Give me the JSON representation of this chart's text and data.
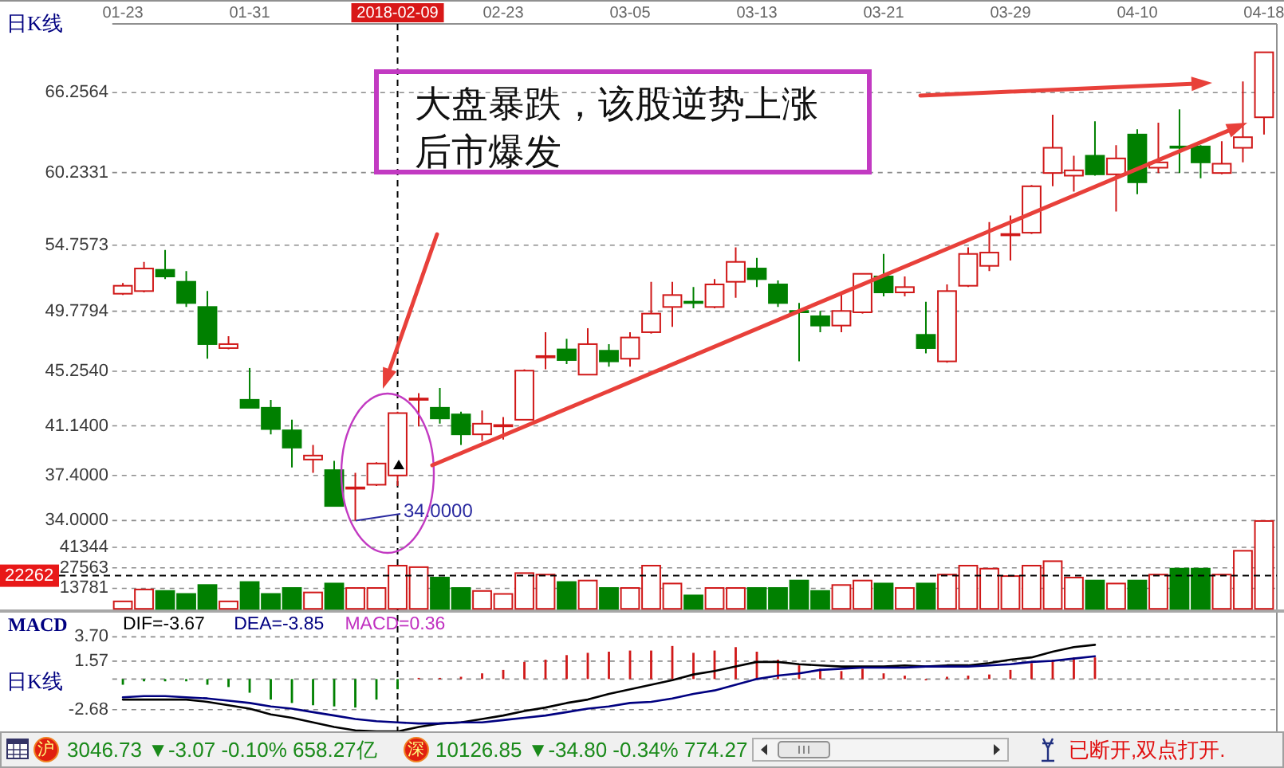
{
  "chart_data": [
    {
      "type": "candlestick",
      "title": "日K线",
      "categories": [
        "01-23",
        null,
        null,
        null,
        null,
        null,
        "01-31",
        null,
        null,
        null,
        null,
        null,
        null,
        "2018-02-09",
        null,
        null,
        null,
        null,
        "02-23",
        null,
        null,
        null,
        null,
        null,
        "03-05",
        null,
        null,
        null,
        null,
        null,
        "03-13",
        null,
        null,
        null,
        null,
        null,
        "03-21",
        null,
        null,
        null,
        null,
        null,
        "03-29",
        null,
        null,
        null,
        null,
        null,
        "04-10",
        null,
        null,
        null,
        null,
        null,
        "04-18"
      ],
      "ohlc": [
        [
          51.1,
          51.9,
          51.0,
          51.7
        ],
        [
          51.3,
          53.5,
          51.2,
          53.0
        ],
        [
          52.9,
          54.4,
          52.2,
          52.4
        ],
        [
          52.0,
          52.8,
          50.1,
          50.4
        ],
        [
          50.1,
          51.3,
          46.2,
          47.3
        ],
        [
          47.0,
          47.9,
          46.9,
          47.3
        ],
        [
          43.1,
          45.5,
          42.5,
          42.5
        ],
        [
          42.5,
          43.1,
          40.5,
          40.9
        ],
        [
          40.8,
          41.6,
          38.0,
          39.5
        ],
        [
          38.6,
          39.7,
          37.6,
          38.9
        ],
        [
          37.8,
          38.5,
          35.1,
          35.1
        ],
        [
          36.4,
          37.6,
          34.0,
          36.5
        ],
        [
          36.7,
          38.4,
          36.6,
          38.3
        ],
        [
          37.4,
          42.2,
          36.6,
          42.1
        ],
        [
          43.1,
          43.6,
          41.1,
          43.2
        ],
        [
          42.5,
          44.0,
          41.3,
          41.7
        ],
        [
          42.0,
          42.2,
          39.7,
          40.5
        ],
        [
          40.5,
          42.3,
          40.0,
          41.3
        ],
        [
          41.1,
          41.8,
          40.1,
          41.2
        ],
        [
          41.6,
          45.4,
          41.6,
          45.3
        ],
        [
          46.3,
          48.2,
          45.4,
          46.4
        ],
        [
          46.9,
          47.7,
          45.8,
          46.1
        ],
        [
          45.0,
          48.5,
          45.0,
          47.3
        ],
        [
          46.8,
          47.3,
          45.6,
          46.0
        ],
        [
          46.2,
          48.2,
          45.6,
          47.8
        ],
        [
          48.2,
          52.0,
          48.1,
          49.6
        ],
        [
          50.1,
          52.0,
          48.6,
          51.0
        ],
        [
          50.5,
          51.6,
          50.0,
          50.4
        ],
        [
          50.1,
          52.2,
          50.0,
          51.8
        ],
        [
          52.0,
          54.6,
          50.8,
          53.5
        ],
        [
          53.0,
          53.8,
          51.6,
          52.2
        ],
        [
          51.8,
          52.1,
          50.1,
          50.4
        ],
        [
          49.8,
          50.4,
          46.0,
          49.7
        ],
        [
          49.4,
          49.8,
          48.2,
          48.7
        ],
        [
          48.7,
          51.2,
          48.2,
          49.8
        ],
        [
          49.7,
          52.6,
          49.6,
          52.6
        ],
        [
          52.4,
          54.1,
          50.9,
          51.2
        ],
        [
          51.2,
          52.4,
          50.9,
          51.6
        ],
        [
          48.0,
          50.5,
          46.6,
          47.0
        ],
        [
          46.0,
          51.8,
          45.9,
          51.3
        ],
        [
          51.7,
          54.6,
          51.6,
          54.1
        ],
        [
          53.2,
          56.5,
          52.8,
          54.2
        ],
        [
          55.5,
          57.0,
          53.6,
          55.6
        ],
        [
          55.7,
          59.3,
          55.6,
          59.2
        ],
        [
          60.2,
          64.6,
          59.2,
          62.1
        ],
        [
          60.0,
          61.5,
          58.8,
          60.4
        ],
        [
          61.5,
          64.1,
          60.0,
          60.1
        ],
        [
          60.1,
          62.3,
          57.3,
          61.3
        ],
        [
          63.1,
          63.5,
          58.6,
          59.5
        ],
        [
          60.6,
          64.0,
          60.2,
          61.0
        ],
        [
          62.2,
          65.0,
          60.2,
          62.1
        ],
        [
          62.2,
          62.3,
          59.8,
          61.0
        ],
        [
          60.2,
          62.6,
          60.1,
          60.9
        ],
        [
          62.1,
          67.1,
          61.0,
          62.9
        ],
        [
          64.4,
          69.3,
          63.1,
          69.3
        ]
      ],
      "colors": [
        "#d01818",
        "#d01818",
        "#008000",
        "#008000",
        "#008000",
        "#d01818",
        "#008000",
        "#008000",
        "#008000",
        "#d01818",
        "#008000",
        "#d01818",
        "#d01818",
        "#d01818",
        "#d01818",
        "#008000",
        "#008000",
        "#d01818",
        "#d01818",
        "#d01818",
        "#d01818",
        "#008000",
        "#d01818",
        "#008000",
        "#d01818",
        "#d01818",
        "#d01818",
        "#008000",
        "#d01818",
        "#d01818",
        "#008000",
        "#008000",
        "#008000",
        "#008000",
        "#d01818",
        "#d01818",
        "#008000",
        "#d01818",
        "#008000",
        "#d01818",
        "#d01818",
        "#d01818",
        "#d01818",
        "#d01818",
        "#d01818",
        "#d01818",
        "#008000",
        "#d01818",
        "#008000",
        "#d01818",
        "#008000",
        "#008000",
        "#d01818",
        "#d01818",
        "#d01818"
      ],
      "ylim": [
        34,
        71.2
      ],
      "yticks": [
        {
          "value": 34,
          "label": "34.0000"
        },
        {
          "value": 37.4,
          "label": "37.4000"
        },
        {
          "value": 41.14,
          "label": "41.1400"
        },
        {
          "value": 45.254,
          "label": "45.2540"
        },
        49.7794,
        54.7573,
        60.2331,
        66.2564
      ],
      "grid": "y",
      "ref_lines": [
        {
          "axis": "x",
          "value": "2018-02-09",
          "color": "#000000",
          "line_style": "dashed"
        }
      ],
      "annotations": [
        "大盘暴跌，该股逆势上涨后市爆发",
        "34.0000"
      ]
    },
    {
      "type": "bar",
      "categories": [
        null,
        null,
        null,
        null,
        null,
        null,
        null,
        null,
        null,
        null,
        null,
        null,
        null,
        null,
        null,
        null,
        null,
        null,
        null,
        null,
        null,
        null,
        null,
        null,
        null,
        null,
        null,
        null,
        null,
        null,
        null,
        null,
        null,
        null,
        null,
        null,
        null,
        null,
        null,
        null,
        null,
        null,
        null,
        null,
        null,
        null,
        null,
        null,
        null,
        null,
        null,
        null,
        null,
        null,
        null
      ],
      "values": [
        5000,
        13000,
        12000,
        10000,
        16000,
        5000,
        18000,
        10000,
        14000,
        11000,
        17000,
        14000,
        14000,
        29000,
        28000,
        21000,
        14000,
        12000,
        10000,
        24000,
        23000,
        18000,
        19000,
        14000,
        14000,
        29000,
        17000,
        9000,
        14000,
        14000,
        14000,
        14000,
        19000,
        12000,
        16000,
        19000,
        17000,
        14000,
        17000,
        23000,
        29000,
        27000,
        22000,
        29000,
        32000,
        21000,
        19000,
        17000,
        19000,
        23000,
        27000,
        27000,
        23000,
        39000,
        59000
      ],
      "colors": [
        "#d01818",
        "#d01818",
        "#008000",
        "#008000",
        "#008000",
        "#d01818",
        "#008000",
        "#008000",
        "#008000",
        "#d01818",
        "#008000",
        "#d01818",
        "#d01818",
        "#d01818",
        "#d01818",
        "#008000",
        "#008000",
        "#d01818",
        "#d01818",
        "#d01818",
        "#d01818",
        "#008000",
        "#d01818",
        "#008000",
        "#d01818",
        "#d01818",
        "#d01818",
        "#008000",
        "#d01818",
        "#d01818",
        "#008000",
        "#008000",
        "#008000",
        "#008000",
        "#d01818",
        "#d01818",
        "#008000",
        "#d01818",
        "#008000",
        "#d01818",
        "#d01818",
        "#d01818",
        "#d01818",
        "#d01818",
        "#d01818",
        "#d01818",
        "#008000",
        "#d01818",
        "#008000",
        "#d01818",
        "#008000",
        "#008000",
        "#d01818",
        "#d01818",
        "#d01818"
      ],
      "ylim": [
        0,
        59300
      ],
      "yticks": [
        13781,
        27563,
        41344
      ],
      "grid": "y",
      "ref_lines": [
        {
          "axis": "y",
          "value": 22262,
          "label": "22262",
          "color": "#000000",
          "line_style": "dashed"
        }
      ]
    },
    {
      "type": "bar",
      "title": "MACD",
      "categories": [
        null,
        null,
        null,
        null,
        null,
        null,
        null,
        null,
        null,
        null,
        null,
        null,
        null,
        null,
        null,
        null,
        null,
        null,
        null,
        null,
        null,
        null,
        null,
        null,
        null,
        null,
        null,
        null,
        null,
        null,
        null,
        null,
        null,
        null,
        null,
        null,
        null,
        null,
        null,
        null,
        null,
        null,
        null,
        null,
        null,
        null,
        null,
        null,
        null,
        null,
        null,
        null,
        null,
        null,
        null
      ],
      "series": [
        {
          "name": "DIF=-3.67",
          "type": "line",
          "color": "#000000",
          "values": [
            -1.8,
            -1.8,
            -1.8,
            -1.8,
            -2.0,
            -2.3,
            -2.6,
            -3.1,
            -3.4,
            -3.8,
            -4.2,
            -4.5,
            -4.6,
            -4.6,
            -4.2,
            -3.9,
            -3.8,
            -3.5,
            -3.2,
            -2.8,
            -2.5,
            -2.1,
            -1.8,
            -1.3,
            -0.9,
            -0.5,
            -0.1,
            0.4,
            0.7,
            1.1,
            1.5,
            1.5,
            1.3,
            1.2,
            1.1,
            1.1,
            1.1,
            1.2,
            1.1,
            1.2,
            1.2,
            1.4,
            1.7,
            1.9,
            2.4,
            2.8,
            3.0,
            null,
            null,
            null,
            null,
            null,
            null,
            null,
            null
          ]
        },
        {
          "name": "DEA=-3.85",
          "type": "line",
          "color": "#000080",
          "values": [
            -1.6,
            -1.5,
            -1.5,
            -1.6,
            -1.7,
            -1.9,
            -2.1,
            -2.4,
            -2.6,
            -2.9,
            -3.2,
            -3.5,
            -3.7,
            -3.8,
            -3.9,
            -3.9,
            -3.8,
            -3.8,
            -3.6,
            -3.4,
            -3.2,
            -2.9,
            -2.6,
            -2.4,
            -2.1,
            -2.0,
            -1.7,
            -1.3,
            -1.0,
            -0.5,
            0.0,
            0.3,
            0.5,
            0.8,
            0.9,
            1.0,
            1.0,
            1.0,
            1.1,
            1.1,
            1.1,
            1.2,
            1.3,
            1.5,
            1.6,
            1.8,
            2.0,
            null,
            null,
            null,
            null,
            null,
            null,
            null,
            null
          ]
        },
        {
          "name": "MACD=0.36",
          "type": "bar",
          "values": [
            -0.5,
            -0.2,
            -0.2,
            -0.2,
            -0.5,
            -0.7,
            -1.2,
            -1.8,
            -2.1,
            -2.3,
            -2.4,
            -2.5,
            -1.8,
            -0.9,
            0.1,
            0.1,
            0.2,
            0.5,
            0.8,
            1.5,
            1.7,
            2.1,
            2.3,
            2.4,
            2.5,
            2.5,
            2.9,
            2.3,
            2.5,
            2.8,
            2.4,
            1.7,
            1.2,
            0.9,
            0.7,
            0.9,
            0.5,
            0.3,
            0.0,
            0.2,
            0.3,
            0.4,
            0.8,
            1.4,
            1.7,
            1.9,
            1.9,
            null,
            null,
            null,
            null,
            null,
            null,
            null,
            null
          ],
          "colors": [
            "#008000",
            "#008000",
            "#008000",
            "#008000",
            "#008000",
            "#008000",
            "#008000",
            "#008000",
            "#008000",
            "#008000",
            "#008000",
            "#008000",
            "#008000",
            "#008000",
            "#d01818",
            "#d01818",
            "#d01818",
            "#d01818",
            "#d01818",
            "#d01818",
            "#d01818",
            "#d01818",
            "#d01818",
            "#d01818",
            "#d01818",
            "#d01818",
            "#d01818",
            "#d01818",
            "#d01818",
            "#d01818",
            "#d01818",
            "#d01818",
            "#d01818",
            "#d01818",
            "#d01818",
            "#d01818",
            "#d01818",
            "#d01818",
            "#d01818",
            "#d01818",
            "#d01818",
            "#d01818",
            "#d01818",
            "#d01818",
            "#d01818",
            "#d01818",
            "#d01818",
            null,
            null,
            null,
            null,
            null,
            null,
            null,
            null
          ]
        }
      ],
      "ylim": [
        -4.7,
        3.7
      ],
      "yticks": [
        {
          "value": 3.7,
          "label": "3.70"
        },
        1.57,
        {
          "value": 0,
          "label": null
        },
        -2.68
      ],
      "grid": "y",
      "legend": "top left",
      "annotations": [
        "日K线"
      ]
    },
    {
      "type": "other",
      "annotations": [
        "沪",
        "3046.73 ▼-3.07 -0.10% 658.27亿",
        "深",
        "10126.85 ▼-34.80 -0.34% 774.27",
        "已断开,双点打开."
      ]
    }
  ]
}
